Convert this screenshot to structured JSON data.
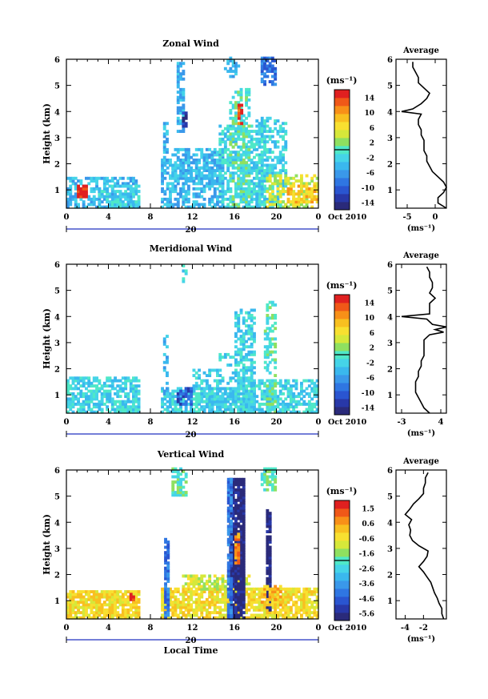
{
  "axis_common": {
    "x_ticks": [
      "0",
      "4",
      "8",
      "12",
      "16",
      "20",
      "0"
    ],
    "day_label": "20",
    "month_year": "Oct 2010",
    "xlabel_bottom": "Local Time",
    "ylabel": "Height (km)",
    "y_ticks": [
      "1",
      "2",
      "3",
      "4",
      "5",
      "6"
    ],
    "cbar_unit": "(ms⁻¹)",
    "avg_unit": "(ms⁻¹)",
    "avg_title": "Average"
  },
  "palette": [
    "#2a2a7a",
    "#2838a8",
    "#2a55d0",
    "#2f76e2",
    "#3a98ea",
    "#3ab8ee",
    "#45d4e8",
    "#4fe8c8",
    "#8fe060",
    "#d6e83a",
    "#f8e030",
    "#f8c020",
    "#f89018",
    "#f05818",
    "#e02020"
  ],
  "chart_data": [
    {
      "type": "heatmap",
      "title": "Zonal Wind",
      "ylabel": "Height (km)",
      "xlim_hours": [
        0,
        24
      ],
      "ylim_km": [
        0.3,
        6
      ],
      "colorbar_ticks": [
        "14",
        "10",
        "6",
        "2",
        "-2",
        "-6",
        "-10",
        "-14"
      ],
      "colorbar_range": [
        -16,
        16
      ],
      "average_profile": {
        "title": "Average",
        "xlabel": "(ms⁻¹)",
        "xlim": [
          -7,
          2
        ],
        "x_ticks": [
          -5,
          0
        ],
        "x_tick_labels": [
          "-5",
          "0"
        ],
        "height_km": [
          0.3,
          0.5,
          0.7,
          0.9,
          1.1,
          1.3,
          1.5,
          1.7,
          1.9,
          2.1,
          2.3,
          2.5,
          2.7,
          2.9,
          3.1,
          3.3,
          3.5,
          3.7,
          3.9,
          4.0,
          4.1,
          4.3,
          4.5,
          4.7,
          4.9,
          5.1,
          5.3,
          5.5,
          5.7,
          5.9
        ],
        "value": [
          2,
          0.5,
          0.5,
          1.5,
          2,
          1.5,
          0.5,
          -0.5,
          -1,
          -1.5,
          -1.5,
          -2,
          -2,
          -2,
          -2.5,
          -2.5,
          -3,
          -3,
          -2.5,
          -6,
          -4,
          -2.5,
          -1.5,
          -1,
          -2,
          -3,
          -3,
          -3.5,
          -4,
          -4
        ]
      }
    },
    {
      "type": "heatmap",
      "title": "Meridional Wind",
      "ylabel": "Height (km)",
      "xlim_hours": [
        0,
        24
      ],
      "ylim_km": [
        0.3,
        6
      ],
      "colorbar_ticks": [
        "14",
        "10",
        "6",
        "2",
        "-2",
        "-6",
        "-10",
        "-14"
      ],
      "colorbar_range": [
        -16,
        16
      ],
      "average_profile": {
        "title": "Average",
        "xlabel": "(ms⁻¹)",
        "xlim": [
          -4,
          5
        ],
        "x_ticks": [
          -3,
          4
        ],
        "x_tick_labels": [
          "-3",
          "4"
        ],
        "height_km": [
          0.3,
          0.5,
          0.7,
          0.9,
          1.1,
          1.3,
          1.5,
          1.7,
          1.9,
          2.1,
          2.3,
          2.5,
          2.7,
          2.9,
          3.1,
          3.3,
          3.4,
          3.5,
          3.6,
          3.7,
          3.9,
          4.0,
          4.1,
          4.3,
          4.5,
          4.7,
          4.9,
          5.1,
          5.3,
          5.5,
          5.7,
          5.9
        ],
        "value": [
          2,
          1,
          0.5,
          0,
          -0.5,
          -0.5,
          -0.5,
          0,
          0,
          0.5,
          0.5,
          1,
          1,
          1,
          1,
          2,
          4.5,
          3,
          5,
          2.5,
          1.5,
          -3,
          2,
          2,
          2,
          3,
          2,
          2.5,
          2.5,
          2,
          2,
          1.5
        ]
      }
    },
    {
      "type": "heatmap",
      "title": "Vertical Wind",
      "ylabel": "Height (km)",
      "xlabel": "Local Time",
      "xlim_hours": [
        0,
        24
      ],
      "ylim_km": [
        0.3,
        6
      ],
      "colorbar_ticks": [
        "1.5",
        "0.6",
        "-0.6",
        "-1.6",
        "-2.6",
        "-3.6",
        "-4.6",
        "-5.6"
      ],
      "colorbar_range": [
        -6,
        2
      ],
      "average_profile": {
        "title": "Average",
        "xlabel": "(ms⁻¹)",
        "xlim": [
          -5,
          0.5
        ],
        "x_ticks": [
          -4,
          -2
        ],
        "x_tick_labels": [
          "-4",
          "-2"
        ],
        "height_km": [
          0.3,
          0.5,
          0.7,
          0.9,
          1.1,
          1.3,
          1.5,
          1.7,
          1.9,
          2.1,
          2.3,
          2.5,
          2.7,
          2.9,
          3.1,
          3.3,
          3.5,
          3.7,
          3.9,
          4.1,
          4.3,
          4.5,
          4.7,
          4.9,
          5.1,
          5.3,
          5.5,
          5.7,
          5.9
        ],
        "value": [
          0.2,
          0,
          0,
          -0.3,
          -0.5,
          -0.8,
          -1,
          -1.2,
          -1.6,
          -2,
          -2.5,
          -2,
          -1.6,
          -1.5,
          -2.5,
          -3.2,
          -3.5,
          -3.4,
          -3.6,
          -3.3,
          -4,
          -3.5,
          -3.1,
          -2.5,
          -2,
          -2,
          -1.8,
          -1.8,
          -1.5
        ]
      }
    }
  ]
}
